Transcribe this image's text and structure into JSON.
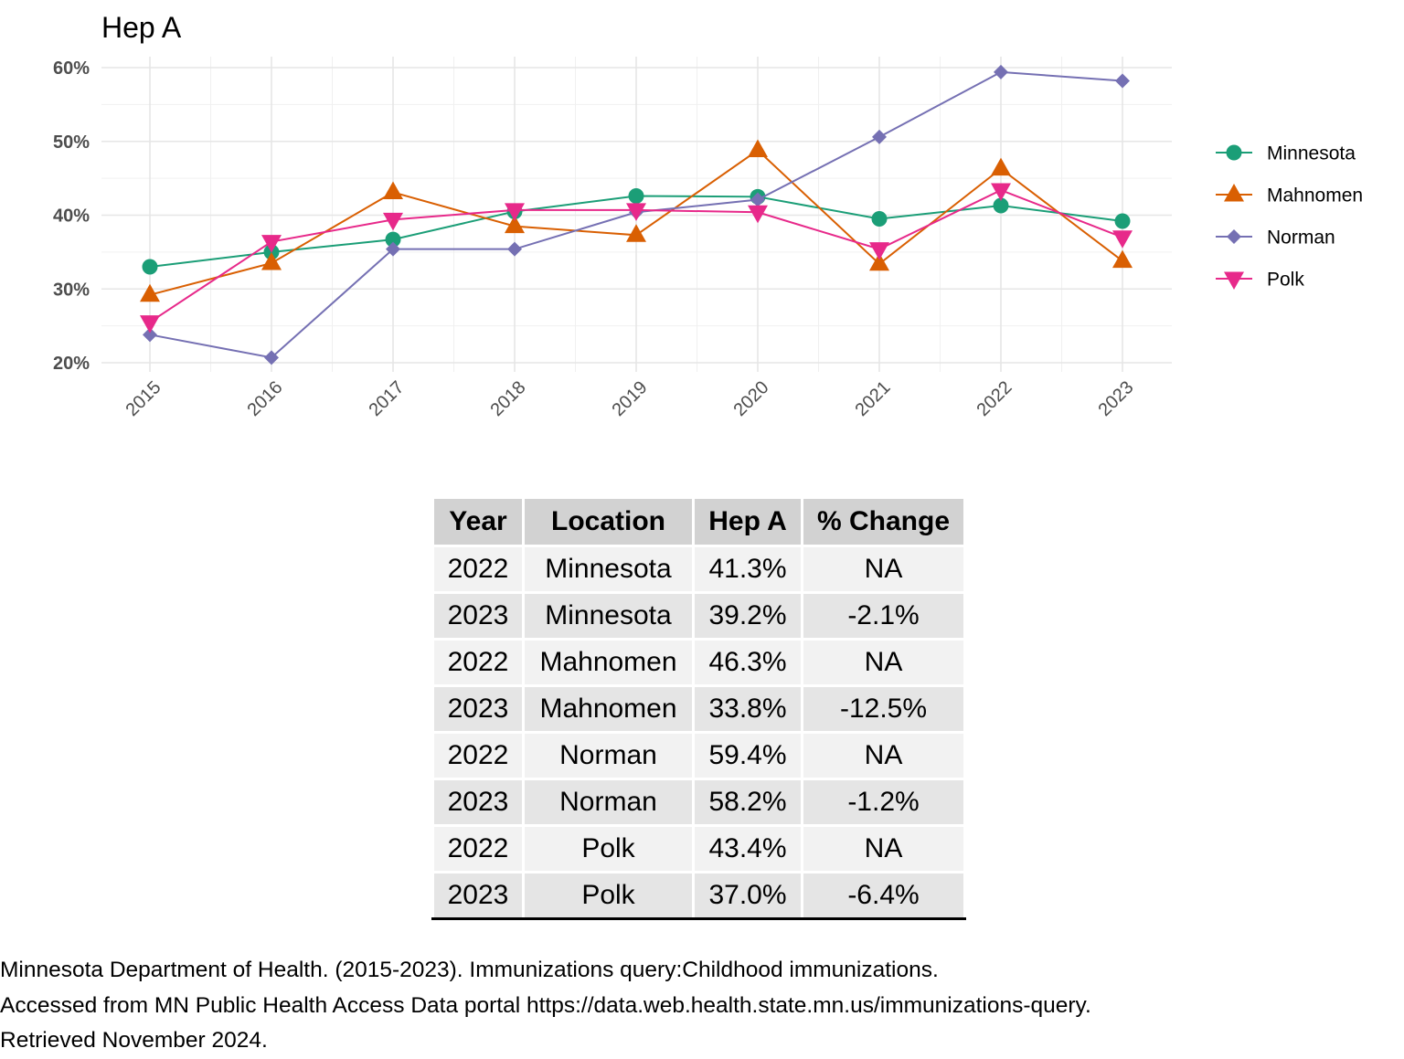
{
  "chart_data": {
    "type": "line",
    "title": "Hep A",
    "x": [
      "2015",
      "2016",
      "2017",
      "2018",
      "2019",
      "2020",
      "2021",
      "2022",
      "2023"
    ],
    "ylim": [
      20,
      60
    ],
    "yticks": [
      20,
      30,
      40,
      50,
      60
    ],
    "ytick_labels": [
      "20%",
      "30%",
      "40%",
      "50%",
      "60%"
    ],
    "grid": true,
    "legend_position": "right",
    "series": [
      {
        "name": "Minnesota",
        "color": "#1b9e77",
        "marker": "circle",
        "values": [
          33.0,
          35.0,
          36.7,
          40.5,
          42.6,
          42.5,
          39.5,
          41.3,
          39.2
        ]
      },
      {
        "name": "Mahnomen",
        "color": "#d95f02",
        "marker": "triangle-up",
        "values": [
          29.2,
          33.5,
          43.1,
          38.5,
          37.3,
          48.8,
          33.4,
          46.3,
          33.8
        ]
      },
      {
        "name": "Norman",
        "color": "#7570b3",
        "marker": "diamond",
        "values": [
          23.8,
          20.7,
          35.4,
          35.4,
          40.4,
          42.1,
          50.6,
          59.4,
          58.2
        ]
      },
      {
        "name": "Polk",
        "color": "#e7298a",
        "marker": "triangle-down",
        "values": [
          25.5,
          36.4,
          39.4,
          40.7,
          40.7,
          40.4,
          35.4,
          43.4,
          37.0
        ]
      }
    ]
  },
  "table": {
    "headers": [
      "Year",
      "Location",
      "Hep A",
      "% Change"
    ],
    "rows": [
      [
        "2022",
        "Minnesota",
        "41.3%",
        "NA"
      ],
      [
        "2023",
        "Minnesota",
        "39.2%",
        "-2.1%"
      ],
      [
        "2022",
        "Mahnomen",
        "46.3%",
        "NA"
      ],
      [
        "2023",
        "Mahnomen",
        "33.8%",
        "-12.5%"
      ],
      [
        "2022",
        "Norman",
        "59.4%",
        "NA"
      ],
      [
        "2023",
        "Norman",
        "58.2%",
        "-1.2%"
      ],
      [
        "2022",
        "Polk",
        "43.4%",
        "NA"
      ],
      [
        "2023",
        "Polk",
        "37.0%",
        "-6.4%"
      ]
    ]
  },
  "source": {
    "lines": [
      "Minnesota Department of Health. (2015-2023). Immunizations query:Childhood immunizations.",
      "Accessed from MN Public Health Access Data portal https://data.web.health.state.mn.us/immunizations-query.",
      "Retrieved November 2024."
    ]
  }
}
